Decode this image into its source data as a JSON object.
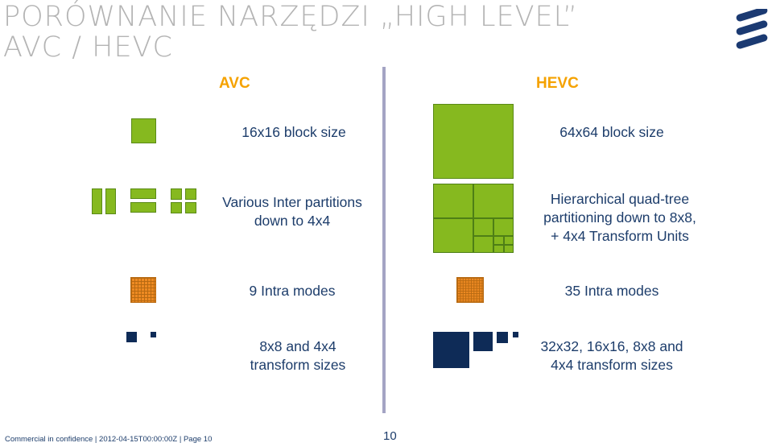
{
  "slide": {
    "title_line1": "PORÓWNANIE NARZĘDZI „HIGH LEVEL”",
    "title_line2": "AVC / HEVC",
    "avc_header": "AVC",
    "hevc_header": "HEVC",
    "avc_rows": [
      [
        "16x16 block size"
      ],
      [
        "Various Inter partitions",
        "down to 4x4"
      ],
      [
        "9 Intra modes"
      ],
      [
        "8x8 and 4x4",
        "transform sizes"
      ]
    ],
    "hevc_rows": [
      [
        "64x64 block size"
      ],
      [
        "Hierarchical quad-tree",
        "partitioning down to 8x8,",
        "+ 4x4 Transform Units"
      ],
      [
        "35 Intra modes"
      ],
      [
        "32x32, 16x16, 8x8 and",
        "4x4 transform sizes"
      ]
    ],
    "footer": "Commercial in confidence  |  2012-04-15T00:00:00Z  |  Page 10",
    "page_number": "10"
  },
  "colors": {
    "title": "#b4b4b4",
    "header": "#f5a200",
    "text": "#1d3d6b",
    "green": "#86b91f",
    "orange": "#ee8a22",
    "navy": "#0e2b57",
    "logo": "#1b3a72"
  },
  "icons": [
    "ericsson-logo",
    "block-16x16",
    "inter-partitions",
    "quad-tree",
    "intra-modes-grid",
    "transform-blocks"
  ]
}
